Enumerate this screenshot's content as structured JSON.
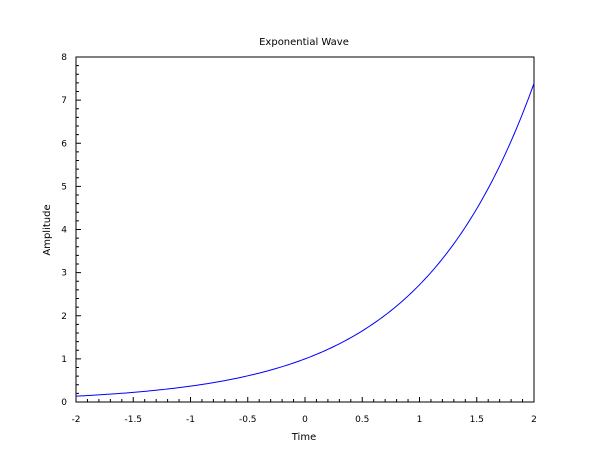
{
  "chart_data": {
    "type": "line",
    "title": "Exponential Wave",
    "xlabel": "Time",
    "ylabel": "Amplitude",
    "xlim": [
      -2,
      2
    ],
    "ylim": [
      0,
      8
    ],
    "grid": false,
    "legend": "none",
    "x_ticks": [
      -2,
      -1.5,
      -1,
      -0.5,
      0,
      0.5,
      1,
      1.5,
      2
    ],
    "x_tick_labels": [
      "-2",
      "-1.5",
      "-1",
      "-0.5",
      "0",
      "0.5",
      "1",
      "1.5",
      "2"
    ],
    "y_ticks": [
      0,
      1,
      2,
      3,
      4,
      5,
      6,
      7,
      8
    ],
    "y_tick_labels": [
      "0",
      "1",
      "2",
      "3",
      "4",
      "5",
      "6",
      "7",
      "8"
    ],
    "series": [
      {
        "color": "#0000ff",
        "x": [
          -2,
          -1.75,
          -1.5,
          -1.25,
          -1,
          -0.75,
          -0.5,
          -0.25,
          0,
          0.25,
          0.5,
          0.75,
          1,
          1.25,
          1.5,
          1.75,
          2
        ],
        "y": [
          0.135,
          0.174,
          0.223,
          0.287,
          0.368,
          0.472,
          0.607,
          0.779,
          1.0,
          1.284,
          1.649,
          2.117,
          2.718,
          3.49,
          4.482,
          5.755,
          7.389
        ]
      }
    ]
  }
}
